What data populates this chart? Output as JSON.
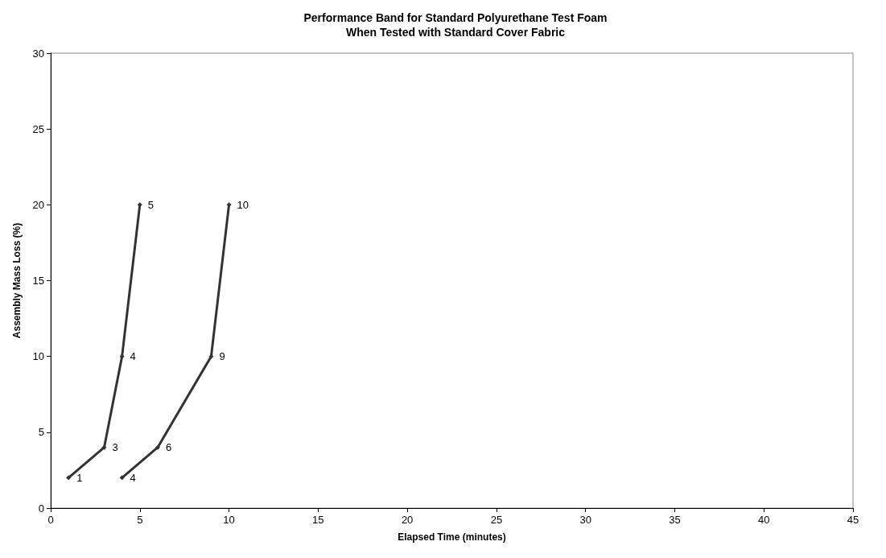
{
  "chart_data": {
    "type": "line",
    "title": "Performance Band for Standard Polyurethane Test Foam\nWhen Tested with Standard Cover Fabric",
    "xlabel": "Elapsed Time (minutes)",
    "ylabel": "Assembly Mass Loss (%)",
    "series": [
      {
        "color": "#333333",
        "x": [
          1,
          3,
          4,
          5
        ],
        "values": [
          2,
          4,
          10,
          20
        ]
      },
      {
        "color": "#333333",
        "x": [
          4,
          6,
          9,
          10
        ],
        "values": [
          2,
          4,
          10,
          20
        ]
      }
    ],
    "annotations": [
      {
        "text": "1",
        "x": 1,
        "y": 2
      },
      {
        "text": "3",
        "x": 3,
        "y": 4
      },
      {
        "text": "4",
        "x": 4,
        "y": 10
      },
      {
        "text": "5",
        "x": 5,
        "y": 20
      },
      {
        "text": "4",
        "x": 4,
        "y": 2
      },
      {
        "text": "6",
        "x": 6,
        "y": 4
      },
      {
        "text": "9",
        "x": 9,
        "y": 10
      },
      {
        "text": "10",
        "x": 10,
        "y": 20
      }
    ],
    "xlim": [
      0,
      45
    ],
    "xticks": [
      0,
      5,
      10,
      15,
      20,
      25,
      30,
      35,
      40,
      45
    ],
    "ylim": [
      0,
      30
    ],
    "yticks": [
      0,
      5,
      10,
      15,
      20,
      25,
      30
    ],
    "grid": false,
    "marker": "diamond",
    "line_style": "solid"
  }
}
